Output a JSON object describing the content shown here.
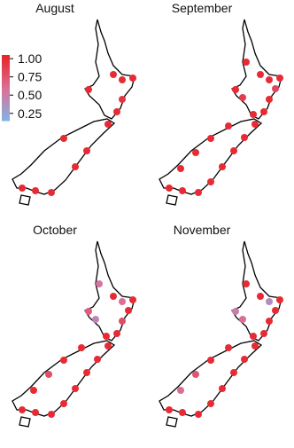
{
  "maps": [
    {
      "title": "August",
      "values": [
        1,
        1,
        1,
        null,
        0.95,
        1,
        null,
        null,
        1,
        null,
        1,
        null,
        1,
        1,
        null,
        1,
        1,
        1,
        null,
        null,
        1,
        null
      ]
    },
    {
      "title": "September",
      "values": [
        1,
        1,
        1,
        0.85,
        1,
        1,
        1,
        0.9,
        1,
        1,
        1,
        1,
        1,
        1,
        1,
        1,
        1,
        1,
        1,
        1,
        1,
        1
      ]
    },
    {
      "title": "October",
      "values": [
        1,
        0.6,
        1,
        1,
        0.8,
        1,
        1,
        0.45,
        0.7,
        0.55,
        1,
        1,
        1,
        1,
        1,
        1,
        1,
        1,
        1,
        0.8,
        1,
        1
      ]
    },
    {
      "title": "November",
      "values": [
        1,
        0.4,
        1,
        1,
        1,
        1,
        1,
        0.6,
        0.5,
        1,
        1,
        1,
        1,
        1,
        1,
        1,
        1,
        1,
        0.6,
        0.75,
        1,
        1
      ]
    }
  ],
  "legend": {
    "lim": [
      0.15,
      1.05
    ],
    "ticks": [
      {
        "value": 1,
        "label": "1.00"
      },
      {
        "value": 0.75,
        "label": "0.75"
      },
      {
        "value": 0.5,
        "label": "0.50"
      },
      {
        "value": 0.25,
        "label": "0.25"
      }
    ]
  }
}
